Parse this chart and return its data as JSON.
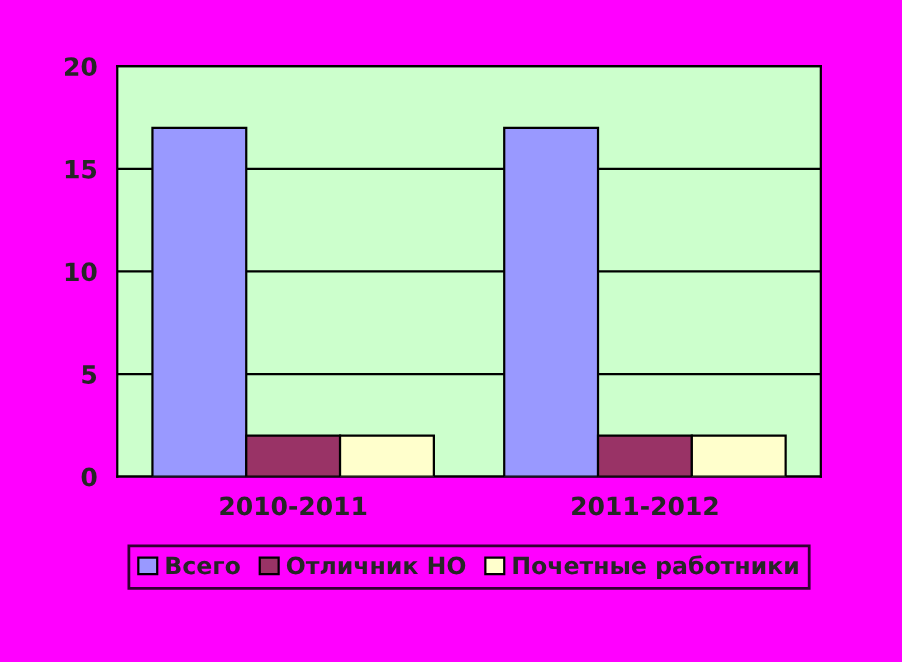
{
  "chart_data": {
    "type": "bar",
    "categories": [
      "2010-2011",
      "2011-2012"
    ],
    "series": [
      {
        "name": "Всего",
        "color": "#9999ff",
        "values": [
          17,
          17
        ]
      },
      {
        "name": "Отличник НО",
        "color": "#993366",
        "values": [
          2,
          2
        ]
      },
      {
        "name": "Почетные работники",
        "color": "#ffffcc",
        "values": [
          2,
          2
        ]
      }
    ],
    "ylim": [
      0,
      20
    ],
    "yticks": [
      0,
      5,
      10,
      15,
      20
    ],
    "grid": "y",
    "legend": "bottom"
  }
}
